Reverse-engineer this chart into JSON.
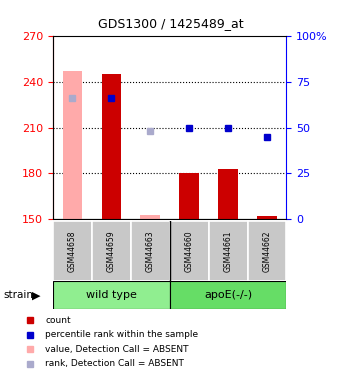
{
  "title": "GDS1300 / 1425489_at",
  "samples": [
    "GSM44658",
    "GSM44659",
    "GSM44663",
    "GSM44660",
    "GSM44661",
    "GSM44662"
  ],
  "ylim": [
    150,
    270
  ],
  "yticks": [
    150,
    180,
    210,
    240,
    270
  ],
  "y2lim": [
    0,
    100
  ],
  "y2ticks": [
    0,
    25,
    50,
    75,
    100
  ],
  "bar_values": [
    247,
    245,
    153,
    180,
    183,
    152
  ],
  "bar_absent": [
    true,
    false,
    true,
    false,
    false,
    false
  ],
  "rank_pct": [
    66,
    66,
    48,
    50,
    50,
    45
  ],
  "rank_absent": [
    true,
    false,
    true,
    false,
    false,
    false
  ],
  "bar_color_present": "#cc0000",
  "bar_color_absent": "#ffaaaa",
  "rank_color_present": "#0000cc",
  "rank_color_absent": "#aaaacc",
  "base": 150,
  "bar_width": 0.5,
  "group_wt_label": "wild type",
  "group_apoe_label": "apoE(-/-)",
  "group_wt_color": "#90ee90",
  "group_apoe_color": "#66dd66",
  "gray_box_color": "#c8c8c8",
  "legend_items": [
    {
      "color": "#cc0000",
      "label": "count"
    },
    {
      "color": "#0000cc",
      "label": "percentile rank within the sample"
    },
    {
      "color": "#ffaaaa",
      "label": "value, Detection Call = ABSENT"
    },
    {
      "color": "#aaaacc",
      "label": "rank, Detection Call = ABSENT"
    }
  ]
}
